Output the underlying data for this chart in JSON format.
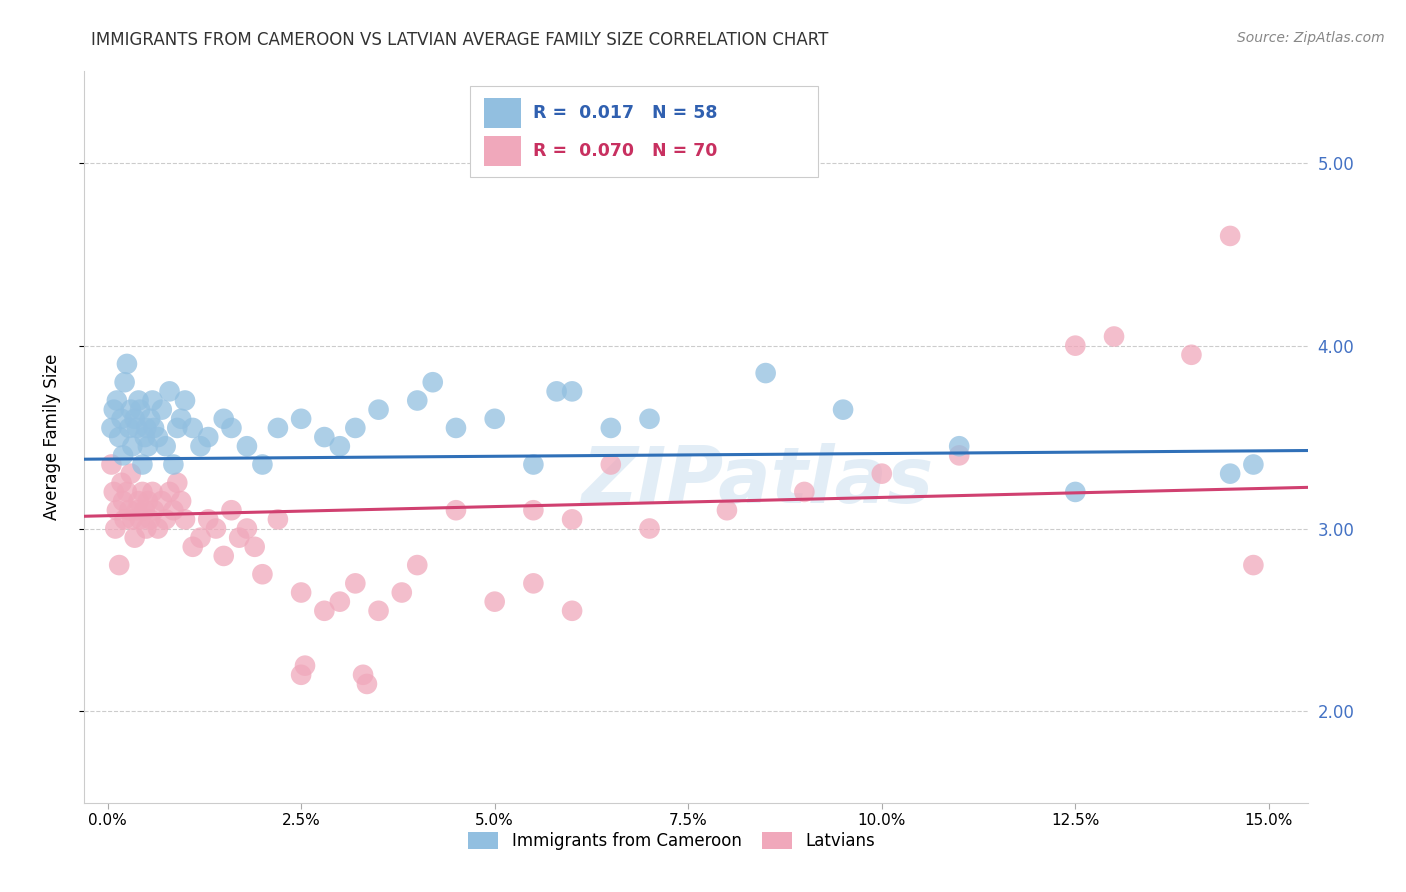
{
  "title": "IMMIGRANTS FROM CAMEROON VS LATVIAN AVERAGE FAMILY SIZE CORRELATION CHART",
  "source": "Source: ZipAtlas.com",
  "ylabel": "Average Family Size",
  "xlabel_ticks": [
    "0.0%",
    "2.5%",
    "5.0%",
    "7.5%",
    "10.0%",
    "12.5%",
    "15.0%"
  ],
  "xlabel_vals": [
    0.0,
    2.5,
    5.0,
    7.5,
    10.0,
    12.5,
    15.0
  ],
  "right_yticks": [
    2.0,
    3.0,
    4.0,
    5.0
  ],
  "ylim": [
    1.5,
    5.5
  ],
  "xlim": [
    -0.3,
    15.5
  ],
  "blue_R": "0.017",
  "blue_N": "58",
  "pink_R": "0.070",
  "pink_N": "70",
  "blue_color": "#92BFE0",
  "pink_color": "#F0A8BB",
  "blue_line_color": "#3070B8",
  "pink_line_color": "#D04070",
  "legend_label_blue": "Immigrants from Cameroon",
  "legend_label_pink": "Latvians",
  "watermark": "ZIPatlas",
  "blue_slope": 0.003,
  "blue_intercept": 3.38,
  "pink_slope": 0.01,
  "pink_intercept": 3.07,
  "blue_x": [
    0.05,
    0.08,
    0.12,
    0.15,
    0.18,
    0.2,
    0.22,
    0.25,
    0.28,
    0.3,
    0.32,
    0.35,
    0.38,
    0.4,
    0.42,
    0.45,
    0.48,
    0.5,
    0.52,
    0.55,
    0.58,
    0.6,
    0.65,
    0.7,
    0.75,
    0.8,
    0.85,
    0.9,
    0.95,
    1.0,
    1.1,
    1.2,
    1.3,
    1.5,
    1.6,
    1.8,
    2.0,
    2.2,
    2.5,
    2.8,
    3.0,
    3.2,
    3.5,
    4.0,
    4.5,
    5.0,
    5.5,
    6.0,
    6.5,
    7.0,
    8.5,
    9.5,
    11.0,
    12.5,
    14.5,
    14.8,
    5.8,
    4.2
  ],
  "blue_y": [
    3.55,
    3.65,
    3.7,
    3.5,
    3.6,
    3.4,
    3.8,
    3.9,
    3.55,
    3.65,
    3.45,
    3.6,
    3.55,
    3.7,
    3.65,
    3.35,
    3.5,
    3.55,
    3.45,
    3.6,
    3.7,
    3.55,
    3.5,
    3.65,
    3.45,
    3.75,
    3.35,
    3.55,
    3.6,
    3.7,
    3.55,
    3.45,
    3.5,
    3.6,
    3.55,
    3.45,
    3.35,
    3.55,
    3.6,
    3.5,
    3.45,
    3.55,
    3.65,
    3.7,
    3.55,
    3.6,
    3.35,
    3.75,
    3.55,
    3.6,
    3.85,
    3.65,
    3.45,
    3.2,
    3.3,
    3.35,
    3.75,
    3.8
  ],
  "pink_x": [
    0.05,
    0.08,
    0.1,
    0.12,
    0.15,
    0.18,
    0.2,
    0.22,
    0.25,
    0.28,
    0.3,
    0.32,
    0.35,
    0.38,
    0.4,
    0.42,
    0.45,
    0.48,
    0.5,
    0.52,
    0.55,
    0.58,
    0.6,
    0.65,
    0.7,
    0.75,
    0.8,
    0.85,
    0.9,
    0.95,
    1.0,
    1.1,
    1.2,
    1.3,
    1.4,
    1.5,
    1.6,
    1.7,
    1.8,
    1.9,
    2.0,
    2.2,
    2.5,
    2.8,
    3.0,
    3.2,
    3.5,
    3.8,
    4.0,
    4.5,
    5.0,
    5.5,
    6.0,
    6.5,
    7.0,
    8.0,
    9.0,
    10.0,
    11.0,
    12.5,
    13.0,
    14.0,
    14.5,
    14.8,
    3.3,
    3.35,
    2.5,
    2.55,
    5.5,
    6.0
  ],
  "pink_y": [
    3.35,
    3.2,
    3.0,
    3.1,
    2.8,
    3.25,
    3.15,
    3.05,
    3.2,
    3.1,
    3.3,
    3.05,
    2.95,
    3.1,
    3.15,
    3.05,
    3.2,
    3.1,
    3.0,
    3.15,
    3.05,
    3.2,
    3.1,
    3.0,
    3.15,
    3.05,
    3.2,
    3.1,
    3.25,
    3.15,
    3.05,
    2.9,
    2.95,
    3.05,
    3.0,
    2.85,
    3.1,
    2.95,
    3.0,
    2.9,
    2.75,
    3.05,
    2.65,
    2.55,
    2.6,
    2.7,
    2.55,
    2.65,
    2.8,
    3.1,
    2.6,
    2.7,
    2.55,
    3.35,
    3.0,
    3.1,
    3.2,
    3.3,
    3.4,
    4.0,
    4.05,
    3.95,
    4.6,
    2.8,
    2.2,
    2.15,
    2.2,
    2.25,
    3.1,
    3.05
  ]
}
